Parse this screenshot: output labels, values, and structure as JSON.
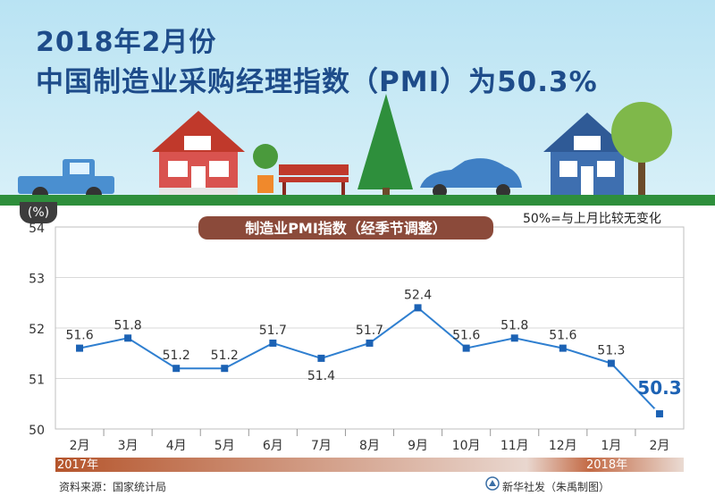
{
  "header": {
    "title_line1": "2018年2月份",
    "title_line2": "中国制造业采购经理指数（PMI）为50.3%"
  },
  "chart_data": {
    "type": "line",
    "title": "制造业PMI指数（经季节调整）",
    "unit_label": "(%)",
    "note": "50%=与上月比较无变化",
    "categories": [
      "2月",
      "3月",
      "4月",
      "5月",
      "6月",
      "7月",
      "8月",
      "9月",
      "10月",
      "11月",
      "12月",
      "1月",
      "2月"
    ],
    "values": [
      51.6,
      51.8,
      51.2,
      51.2,
      51.7,
      51.4,
      51.7,
      52.4,
      51.6,
      51.8,
      51.6,
      51.3,
      50.3
    ],
    "ylim": [
      50,
      54
    ],
    "yticks": [
      "50",
      "51",
      "52",
      "53",
      "54"
    ],
    "year_labels": [
      "2017年",
      "2018年"
    ],
    "highlight_last": true,
    "colors": {
      "line": "#2f7fd0",
      "marker": "#1c62b4",
      "highlight": "#1c62b4",
      "grid": "#d9d9d9",
      "axis_band": "#b86a4a"
    }
  },
  "footer": {
    "source": "资料来源：国家统计局",
    "credit": "新华社发（朱禹制图）"
  },
  "colors": {
    "title": "#1e4c8a",
    "road": "#2e8f3c",
    "sky": "#c6e9f5"
  }
}
